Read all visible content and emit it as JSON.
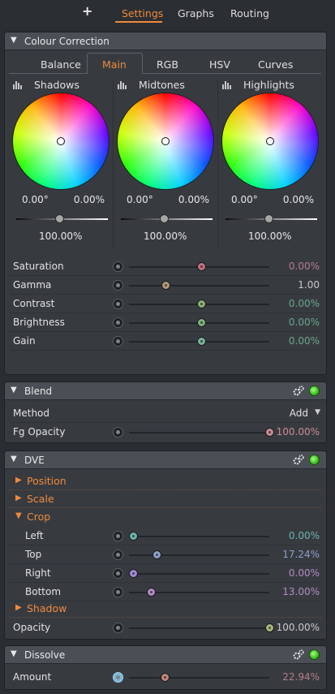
{
  "top_tabs": {
    "add_label": "+",
    "tabs": [
      "Settings",
      "Graphs",
      "Routing"
    ],
    "active": "Settings"
  },
  "colour_correction": {
    "title": "Colour Correction",
    "subtabs": [
      "Balance",
      "Main",
      "RGB",
      "HSV",
      "Curves"
    ],
    "active_subtab": "Main",
    "wheels": [
      {
        "name": "Shadows",
        "hue": "0.00°",
        "saturation": "0.00%",
        "level": "100.00%"
      },
      {
        "name": "Midtones",
        "hue": "0.00°",
        "saturation": "0.00%",
        "level": "100.00%"
      },
      {
        "name": "Highlights",
        "hue": "0.00°",
        "saturation": "0.00%",
        "level": "100.00%"
      }
    ],
    "params": [
      {
        "label": "Saturation",
        "value": "0.00%",
        "knob_color": "#c0737e",
        "position": 0.5
      },
      {
        "label": "Gamma",
        "value": "1.00",
        "knob_color": "#b39a76",
        "position": 0.24
      },
      {
        "label": "Contrast",
        "value": "0.00%",
        "knob_color": "#8fb276",
        "position": 0.5
      },
      {
        "label": "Brightness",
        "value": "0.00%",
        "knob_color": "#7fb07f",
        "position": 0.5
      },
      {
        "label": "Gain",
        "value": "0.00%",
        "knob_color": "#78b39a",
        "position": 0.5
      }
    ]
  },
  "blend": {
    "title": "Blend",
    "method_label": "Method",
    "method_value": "Add",
    "dropdown_arrow": "▼",
    "fg_opacity_label": "Fg Opacity",
    "fg_opacity_value": "100.00%",
    "fg_knob_color": "#c98a94",
    "fg_position": 1.0
  },
  "dve": {
    "title": "DVE",
    "groups": {
      "position": "Position",
      "scale": "Scale",
      "crop": "Crop",
      "shadow": "Shadow"
    },
    "crop_params": [
      {
        "label": "Left",
        "value": "0.00%",
        "knob_color": "#6fb3b0",
        "position": 0.0
      },
      {
        "label": "Top",
        "value": "17.24%",
        "knob_color": "#8e9fc8",
        "position": 0.17
      },
      {
        "label": "Right",
        "value": "0.00%",
        "knob_color": "#a38cd6",
        "position": 0.0
      },
      {
        "label": "Bottom",
        "value": "13.00%",
        "knob_color": "#b48bc6",
        "position": 0.13
      }
    ],
    "opacity_label": "Opacity",
    "opacity_value": "100.00%",
    "opacity_knob_color": "#a6b87a",
    "opacity_position": 1.0
  },
  "dissolve": {
    "title": "Dissolve",
    "amount_label": "Amount",
    "amount_value": "22.94%",
    "amount_knob_color": "#c0877b",
    "amount_position": 0.23
  },
  "icons": {
    "collapse": "▼",
    "expand": "▶",
    "settings": "gear-icon",
    "enabled": "led-icon"
  },
  "colors": {
    "accent": "#f08a3c",
    "enabled_led": "#29b012"
  }
}
